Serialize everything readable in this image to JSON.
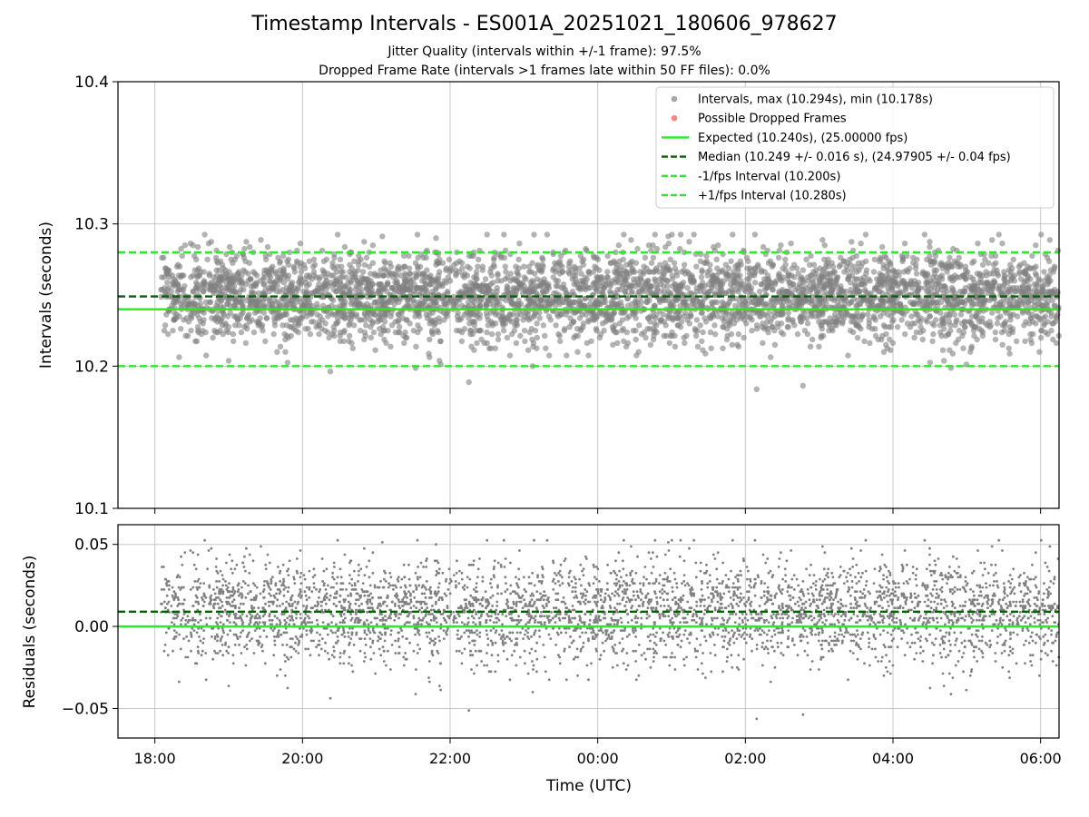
{
  "titles": {
    "main": "Timestamp Intervals - ES001A_20251021_180606_978627",
    "jitter": "Jitter Quality (intervals within +/-1 frame): 97.5%",
    "dropped": "Dropped Frame Rate (intervals >1 frames late within 50 FF files): 0.0%"
  },
  "colors": {
    "points": "#808080",
    "dropped": "#ff4d4d",
    "expected": "#22ee22",
    "median": "#006400",
    "fps_band": "#22ee22",
    "grid": "#c8c8c8"
  },
  "chart_data": [
    {
      "type": "scatter",
      "panel": "intervals",
      "ylabel": "Intervals (seconds)",
      "ylim": [
        10.1,
        10.4
      ],
      "yticks": [
        "10.1",
        "10.2",
        "10.3",
        "10.4"
      ],
      "grid": true,
      "legend_placement": "upper-right",
      "x_range": [
        "17:30",
        "06:15"
      ],
      "xtick_values": [
        "18:00",
        "20:00",
        "22:00",
        "00:00",
        "02:00",
        "04:00",
        "06:00"
      ],
      "series": [
        {
          "name": "Intervals, max (10.294s), min (10.178s)",
          "kind": "scatter",
          "count": 4200,
          "y_center": 10.249,
          "y_min": 10.178,
          "y_max": 10.294
        },
        {
          "name": "Possible Dropped Frames",
          "kind": "scatter",
          "count": 0,
          "values": []
        },
        {
          "name": "Expected (10.240s), (25.00000 fps)",
          "kind": "hline",
          "y": 10.24
        },
        {
          "name": "Median (10.249 +/- 0.016 s), (24.97905 +/- 0.04 fps)",
          "kind": "hline",
          "y": 10.249
        },
        {
          "name": "-1/fps Interval (10.200s)",
          "kind": "hline",
          "y": 10.2
        },
        {
          "name": "+1/fps Interval (10.280s)",
          "kind": "hline",
          "y": 10.28
        }
      ]
    },
    {
      "type": "scatter",
      "panel": "residuals",
      "xlabel": "Time (UTC)",
      "ylabel": "Residuals (seconds)",
      "ylim": [
        -0.068,
        0.062
      ],
      "yticks": [
        "−0.05",
        "0.00",
        "0.05"
      ],
      "ytick_values": [
        -0.05,
        0.0,
        0.05
      ],
      "grid": true,
      "xticks": [
        "18:00",
        "20:00",
        "22:00",
        "00:00",
        "02:00",
        "04:00",
        "06:00"
      ],
      "series": [
        {
          "kind": "scatter",
          "count": 4200,
          "y_center": 0.009,
          "y_min": -0.062,
          "y_max": 0.054
        },
        {
          "kind": "hline",
          "y": 0.0
        },
        {
          "kind": "hline",
          "y": 0.009
        }
      ]
    }
  ]
}
